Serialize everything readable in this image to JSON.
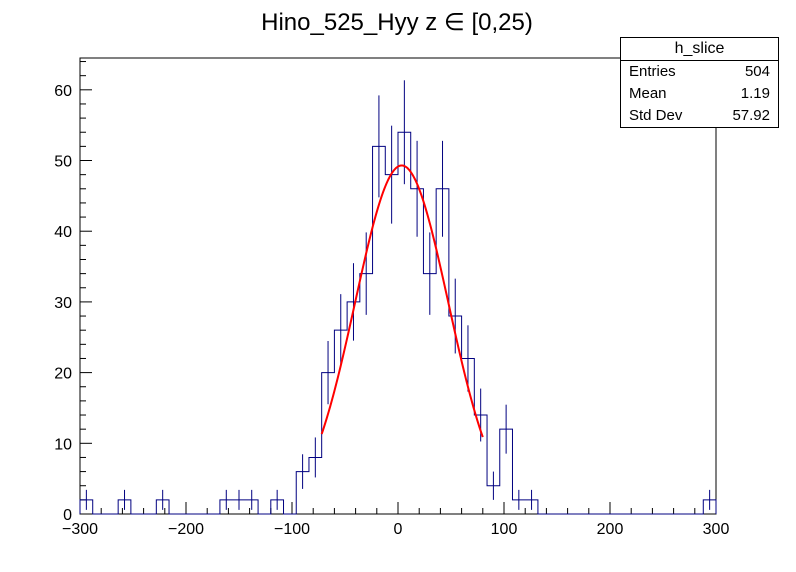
{
  "chart_data": {
    "type": "histogram",
    "title": "Hino_525_Hyy z  ∈ [0,25)",
    "xlim": [
      -300,
      300
    ],
    "ylim": [
      0,
      64.5
    ],
    "x_ticks": [
      -300,
      -200,
      -100,
      0,
      100,
      200,
      300
    ],
    "y_ticks": [
      0,
      10,
      20,
      30,
      40,
      50,
      60
    ],
    "bin_width": 12,
    "bin_edges_start": -300,
    "counts": [
      2,
      0,
      0,
      2,
      0,
      0,
      2,
      0,
      0,
      0,
      0,
      2,
      2,
      2,
      0,
      2,
      0,
      6,
      8,
      20,
      26,
      30,
      34,
      52,
      48,
      54,
      46,
      34,
      46,
      28,
      22,
      14,
      4,
      12,
      2,
      2,
      0,
      0,
      0,
      0,
      0,
      0,
      0,
      0,
      0,
      0,
      0,
      0,
      0,
      2
    ],
    "fit": {
      "function": "gaus",
      "color": "#ff0000",
      "x_range": [
        -72,
        80
      ],
      "constant": 49.3,
      "mean": 3.5,
      "sigma": 44
    },
    "line_color": "#000080",
    "stats": {
      "name": "h_slice",
      "rows": [
        {
          "label": "Entries",
          "value": "504"
        },
        {
          "label": "Mean",
          "value": "1.19"
        },
        {
          "label": "Std Dev",
          "value": "57.92"
        }
      ]
    }
  }
}
